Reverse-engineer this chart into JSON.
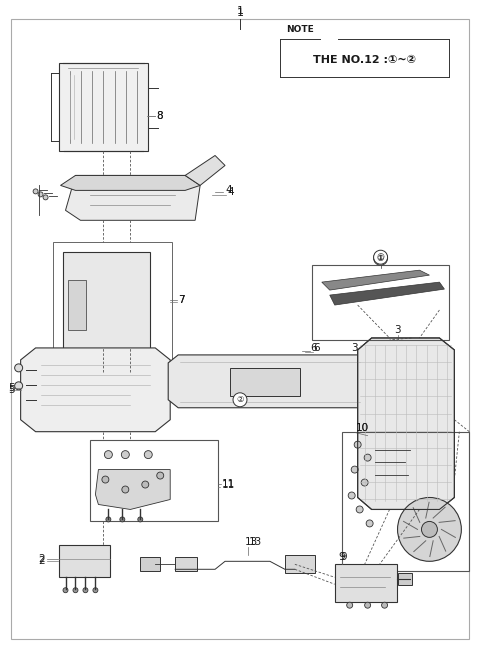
{
  "bg_color": "#ffffff",
  "border_color": "#999999",
  "text_color": "#1a1a1a",
  "line_color": "#333333",
  "note_line1": "NOTE",
  "note_line2": "THE NO.12 :①~②",
  "fig_width": 4.8,
  "fig_height": 6.48,
  "dpi": 100
}
